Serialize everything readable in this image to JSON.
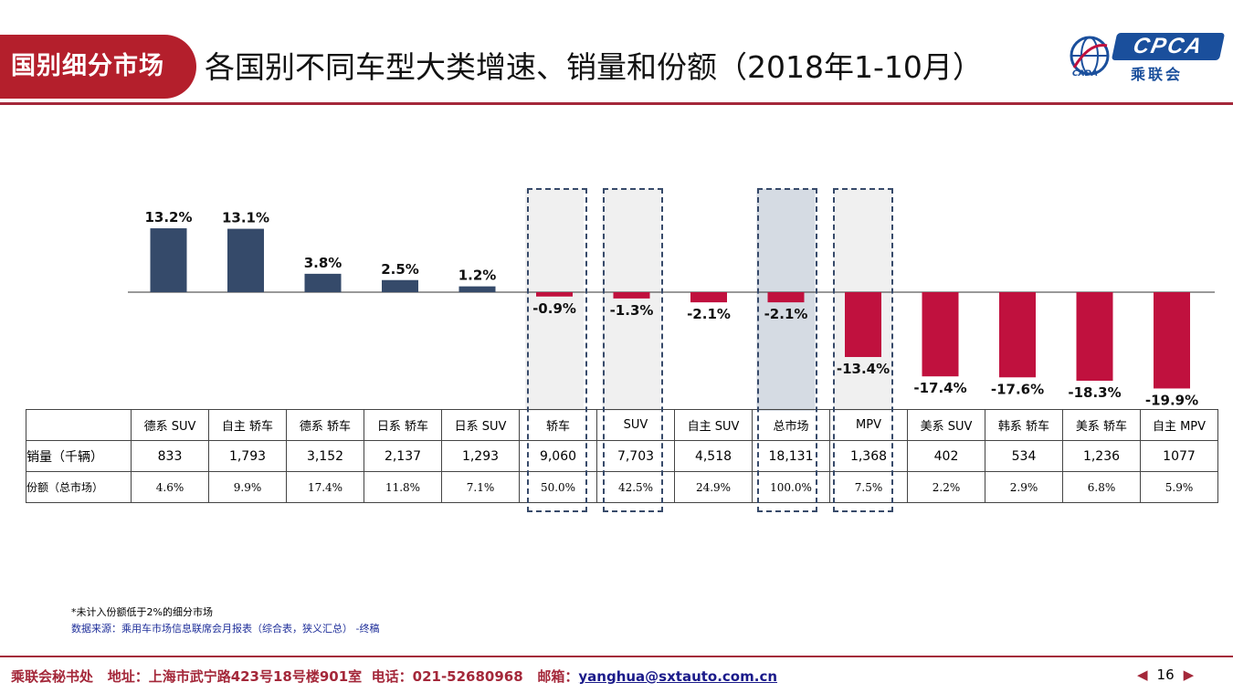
{
  "header": {
    "tag": "国别细分市场",
    "title": "各国别不同车型大类增速、销量和份额（2018年1-10月）",
    "logo_text": "CPCA",
    "logo_cn": "乘联会",
    "logo_sub": "CADA"
  },
  "colors": {
    "positive": "#354a6a",
    "negative": "#c0113e",
    "highlight_fill": "#f0f0f0",
    "total_fill": "#d5dbe3",
    "accent": "#a4283a"
  },
  "chart_data": {
    "type": "bar",
    "categories": [
      "德系 SUV",
      "自主 轿车",
      "德系 轿车",
      "日系 轿车",
      "日系 SUV",
      "轿车",
      "SUV",
      "自主 SUV",
      "总市场",
      "MPV",
      "美系 SUV",
      "韩系 轿车",
      "美系 轿车",
      "自主 MPV"
    ],
    "values": [
      13.2,
      13.1,
      3.8,
      2.5,
      1.2,
      -0.9,
      -1.3,
      -2.1,
      -2.1,
      -13.4,
      -17.4,
      -17.6,
      -18.3,
      -19.9
    ],
    "value_labels": [
      "13.2%",
      "13.1%",
      "3.8%",
      "2.5%",
      "1.2%",
      "-0.9%",
      "-1.3%",
      "-2.1%",
      "-2.1%",
      "-13.4%",
      "-17.4%",
      "-17.6%",
      "-18.3%",
      "-19.9%"
    ],
    "unit": "%",
    "highlighted": [
      "轿车",
      "SUV",
      "总市场",
      "MPV"
    ],
    "title": "",
    "xlabel": "",
    "ylabel": "",
    "ylim": [
      -21,
      14
    ]
  },
  "table": {
    "row_labels": {
      "categories": "",
      "sales": "销量（千辆）",
      "share": "份额（总市场）"
    },
    "sales": [
      "833",
      "1,793",
      "3,152",
      "2,137",
      "1,293",
      "9,060",
      "7,703",
      "4,518",
      "18,131",
      "1,368",
      "402",
      "534",
      "1,236",
      "1077"
    ],
    "share": [
      "4.6%",
      "9.9%",
      "17.4%",
      "11.8%",
      "7.1%",
      "50.0%",
      "42.5%",
      "24.9%",
      "100.0%",
      "7.5%",
      "2.2%",
      "2.9%",
      "6.8%",
      "5.9%"
    ]
  },
  "footnotes": {
    "note": "*未计入份额低于2%的细分市场",
    "source": "数据来源：乘用车市场信息联席会月报表（综合表，狭义汇总） -终稿"
  },
  "footer": {
    "org": "乘联会秘书处",
    "address": "地址：上海市武宁路423号18号楼901室",
    "phone": "电话：021-52680968",
    "email_label": "邮箱：",
    "email": "yanghua@sxtauto.com.cn",
    "page": "16",
    "prev": "◀",
    "next": "▶"
  }
}
